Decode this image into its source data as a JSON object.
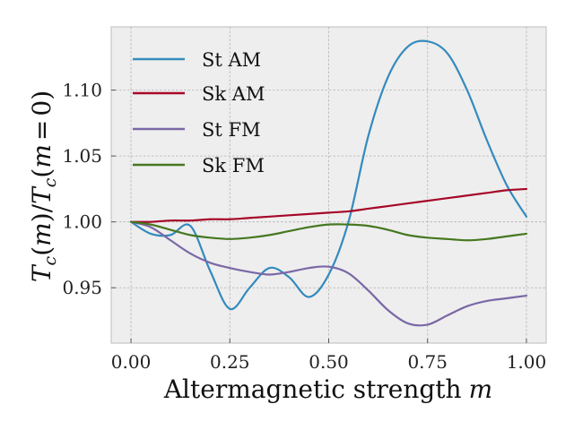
{
  "chart_data": {
    "type": "line",
    "title": "",
    "xlabel": "Altermagnetic strength m",
    "xlabel_parts": {
      "text": "Altermagnetic strength",
      "var": "m"
    },
    "ylabel": "Tc(m)/Tc(m=0)",
    "ylabel_parts": {
      "T": "T",
      "c": "c",
      "m": "m",
      "open": "(",
      "close": ")",
      "slash": "/",
      "eq": "=",
      "zero": "0"
    },
    "xlim": [
      -0.05,
      1.05
    ],
    "ylim": [
      0.908,
      1.148
    ],
    "xticks": [
      0.0,
      0.25,
      0.5,
      0.75,
      1.0
    ],
    "xtick_labels": [
      "0.00",
      "0.25",
      "0.50",
      "0.75",
      "1.00"
    ],
    "yticks": [
      0.95,
      1.0,
      1.05,
      1.1
    ],
    "ytick_labels": [
      "0.95",
      "1.00",
      "1.05",
      "1.10"
    ],
    "grid": true,
    "legend_position": "top-left",
    "x": [
      0.0,
      0.05,
      0.1,
      0.15,
      0.2,
      0.25,
      0.3,
      0.35,
      0.4,
      0.45,
      0.5,
      0.55,
      0.6,
      0.65,
      0.7,
      0.75,
      0.8,
      0.85,
      0.9,
      0.95,
      1.0
    ],
    "series": [
      {
        "name": "St AM",
        "color": "#348abd",
        "values": [
          1.0,
          0.991,
          0.99,
          0.997,
          0.963,
          0.934,
          0.95,
          0.965,
          0.958,
          0.943,
          0.96,
          1.0,
          1.065,
          1.11,
          1.133,
          1.137,
          1.128,
          1.1,
          1.062,
          1.028,
          1.004
        ]
      },
      {
        "name": "Sk AM",
        "color": "#a60628",
        "values": [
          1.0,
          1.0,
          1.001,
          1.001,
          1.002,
          1.002,
          1.003,
          1.004,
          1.005,
          1.006,
          1.007,
          1.008,
          1.01,
          1.012,
          1.014,
          1.016,
          1.018,
          1.02,
          1.022,
          1.024,
          1.025
        ]
      },
      {
        "name": "St FM",
        "color": "#7a68a6",
        "values": [
          1.0,
          0.996,
          0.986,
          0.976,
          0.969,
          0.965,
          0.962,
          0.96,
          0.962,
          0.965,
          0.966,
          0.961,
          0.948,
          0.933,
          0.923,
          0.922,
          0.929,
          0.936,
          0.94,
          0.942,
          0.944
        ]
      },
      {
        "name": "Sk FM",
        "color": "#467821",
        "values": [
          1.0,
          0.998,
          0.994,
          0.99,
          0.988,
          0.987,
          0.988,
          0.99,
          0.993,
          0.996,
          0.998,
          0.998,
          0.997,
          0.994,
          0.99,
          0.988,
          0.987,
          0.986,
          0.987,
          0.989,
          0.991
        ]
      }
    ]
  }
}
